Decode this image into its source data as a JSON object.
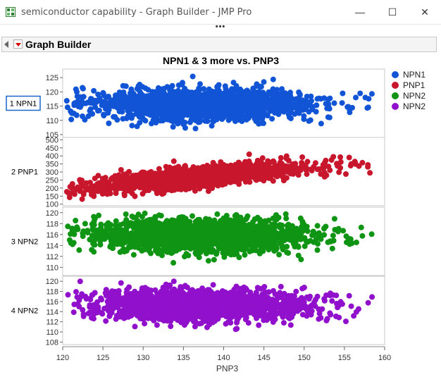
{
  "window": {
    "title": "semiconductor capability - Graph Builder - JMP Pro",
    "minimize_glyph": "—",
    "maximize_glyph": "☐",
    "close_glyph": "✕",
    "grip": "•••"
  },
  "outline": {
    "title": "Graph Builder"
  },
  "chart_data": {
    "type": "scatter",
    "title": "NPN1 & 3 more vs. PNP3",
    "xlabel": "PNP3",
    "xlim": [
      120,
      160
    ],
    "x_ticks": [
      "120",
      "125",
      "130",
      "135",
      "140",
      "145",
      "150",
      "155",
      "160"
    ],
    "grid": false,
    "legend_position": "right",
    "panels": [
      {
        "label": "1 NPN1",
        "series": "NPN1",
        "color": "#1155d6",
        "ylim": [
          104,
          128
        ],
        "y_ticks": [
          "105",
          "110",
          "115",
          "120",
          "125"
        ],
        "center": 115.5,
        "spread": 2.6,
        "slope": 0,
        "tail_low": 106,
        "tail_high": 127
      },
      {
        "label": "2 PNP1",
        "series": "PNP1",
        "color": "#c8172d",
        "ylim": [
          90,
          515
        ],
        "y_ticks": [
          "100",
          "150",
          "200",
          "250",
          "300",
          "350",
          "400",
          "450",
          "500"
        ],
        "center": 270,
        "spread": 30,
        "slope": 4.5,
        "tail_low": 115,
        "tail_high": 490
      },
      {
        "label": "3 NPN2",
        "series": "NPN2",
        "color": "#0f9414",
        "ylim": [
          108.5,
          121
        ],
        "y_ticks": [
          "110",
          "112",
          "114",
          "116",
          "118",
          "120"
        ],
        "center": 115.8,
        "spread": 1.5,
        "slope": 0,
        "tail_low": 110,
        "tail_high": 120
      },
      {
        "label": "4 NPN2",
        "series": "NPN2",
        "color": "#9010cc",
        "ylim": [
          107.5,
          121
        ],
        "y_ticks": [
          "108",
          "110",
          "112",
          "114",
          "116",
          "118",
          "120"
        ],
        "center": 115.2,
        "spread": 1.5,
        "slope": 0,
        "tail_low": 110,
        "tail_high": 120
      }
    ],
    "legend": [
      {
        "name": "NPN1",
        "color": "#1155d6"
      },
      {
        "name": "PNP1",
        "color": "#c8172d"
      },
      {
        "name": "NPN2",
        "color": "#0f9414"
      },
      {
        "name": "NPN2",
        "color": "#9010cc"
      }
    ],
    "x_distribution": {
      "mean": 137.5,
      "sd": 6.5,
      "min": 120.5,
      "max": 158.5,
      "points_per_panel": 1700
    }
  }
}
